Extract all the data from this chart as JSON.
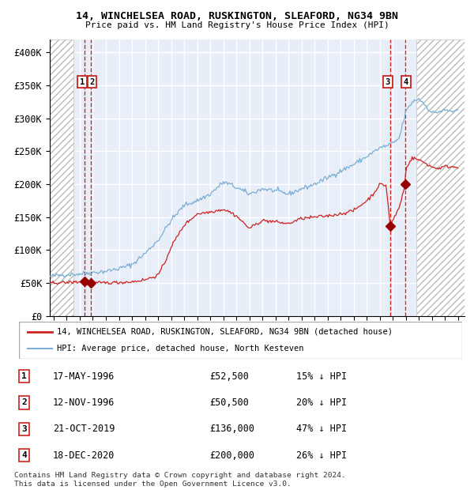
{
  "title1": "14, WINCHELSEA ROAD, RUSKINGTON, SLEAFORD, NG34 9BN",
  "title2": "Price paid vs. HM Land Registry's House Price Index (HPI)",
  "ylim": [
    0,
    420000
  ],
  "xlim_start": 1993.7,
  "xlim_end": 2025.5,
  "yticks": [
    0,
    50000,
    100000,
    150000,
    200000,
    250000,
    300000,
    350000,
    400000
  ],
  "ytick_labels": [
    "£0",
    "£50K",
    "£100K",
    "£150K",
    "£200K",
    "£250K",
    "£300K",
    "£350K",
    "£400K"
  ],
  "hpi_color": "#7aaed4",
  "property_color": "#cc2222",
  "sale_marker_color": "#990000",
  "vline_color": "#cc0000",
  "background_color": "#e8eef8",
  "grid_color": "#ffffff",
  "hatch_left_end": 1995.5,
  "hatch_right_start": 2021.8,
  "sale_dates_decimal": [
    1996.37,
    1996.87,
    2019.8,
    2020.96
  ],
  "sale_prices": [
    52500,
    50500,
    136000,
    200000
  ],
  "legend_property": "14, WINCHELSEA ROAD, RUSKINGTON, SLEAFORD, NG34 9BN (detached house)",
  "legend_hpi": "HPI: Average price, detached house, North Kesteven",
  "table_entries": [
    {
      "num": "1",
      "date": "17-MAY-1996",
      "price": "£52,500",
      "note": "15% ↓ HPI"
    },
    {
      "num": "2",
      "date": "12-NOV-1996",
      "price": "£50,500",
      "note": "20% ↓ HPI"
    },
    {
      "num": "3",
      "date": "21-OCT-2019",
      "price": "£136,000",
      "note": "47% ↓ HPI"
    },
    {
      "num": "4",
      "date": "18-DEC-2020",
      "price": "£200,000",
      "note": "26% ↓ HPI"
    }
  ],
  "footnote": "Contains HM Land Registry data © Crown copyright and database right 2024.\nThis data is licensed under the Open Government Licence v3.0.",
  "hpi_ctrl_t": [
    1993.7,
    1994,
    1995,
    1996,
    1997,
    1998,
    1999,
    2000,
    2001,
    2002,
    2003,
    2004,
    2005,
    2006,
    2007,
    2007.5,
    2008,
    2009,
    2010,
    2011,
    2012,
    2013,
    2014,
    2015,
    2016,
    2017,
    2018,
    2019,
    2019.5,
    2020,
    2020.5,
    2021,
    2021.5,
    2022,
    2022.5,
    2023,
    2023.5,
    2024,
    2025
  ],
  "hpi_ctrl_v": [
    60000,
    61000,
    63000,
    64000,
    66000,
    68000,
    72000,
    78000,
    95000,
    115000,
    145000,
    168000,
    175000,
    185000,
    203000,
    200000,
    195000,
    185000,
    193000,
    190000,
    185000,
    193000,
    200000,
    210000,
    220000,
    230000,
    242000,
    255000,
    258000,
    262000,
    270000,
    310000,
    325000,
    330000,
    320000,
    308000,
    310000,
    312000,
    310000
  ],
  "prop_ctrl_t": [
    1993.7,
    1994,
    1995,
    1996,
    1996.37,
    1996.87,
    1997,
    1998,
    1999,
    2000,
    2001,
    2002,
    2002.5,
    2003,
    2004,
    2005,
    2006,
    2007,
    2007.5,
    2008,
    2009,
    2010,
    2011,
    2012,
    2013,
    2014,
    2015,
    2016,
    2017,
    2018,
    2018.5,
    2019,
    2019.5,
    2019.8,
    2020.0,
    2020.5,
    2020.96,
    2021,
    2021.5,
    2022,
    2022.5,
    2023,
    2023.5,
    2024,
    2025
  ],
  "prop_ctrl_v": [
    50000,
    50500,
    51000,
    52000,
    52500,
    50500,
    50000,
    50500,
    51000,
    52000,
    55000,
    62000,
    80000,
    105000,
    138000,
    155000,
    158000,
    162000,
    158000,
    152000,
    133000,
    145000,
    143000,
    140000,
    148000,
    150000,
    152000,
    155000,
    160000,
    175000,
    185000,
    200000,
    198000,
    136000,
    145000,
    165000,
    200000,
    225000,
    240000,
    237000,
    232000,
    226000,
    224000,
    227000,
    226000
  ]
}
